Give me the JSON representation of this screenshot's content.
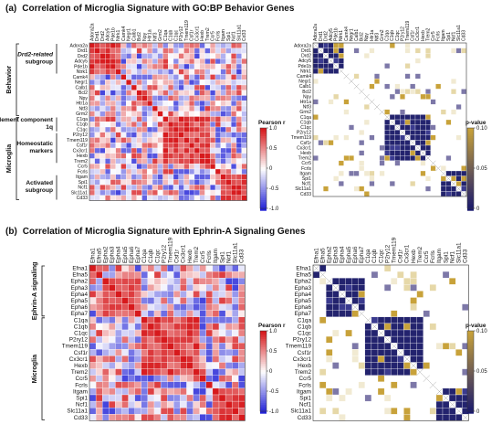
{
  "panels": [
    {
      "tag": "(a)",
      "title": "Correlation of Microglia Signature with GO:BP Behavior Genes",
      "genes": [
        "Adora2a",
        "Drd1",
        "Drd2",
        "Adcy5",
        "Pde1b",
        "Ntrk1",
        "Camk4",
        "Negr1",
        "Calb1",
        "Bcl2",
        "Npy",
        "Htr1a",
        "Ntf3",
        "Grm2",
        "C1qa",
        "C1qb",
        "C1qc",
        "P2ry12",
        "Tmem119",
        "Csf1r",
        "Cx3cr1",
        "Hexb",
        "Trem2",
        "Ccr5",
        "Fcrls",
        "Itgam",
        "Spi1",
        "Ncf1",
        "Slc11a1",
        "Cd33"
      ],
      "groups": [
        {
          "label": "Behavior",
          "italic": false,
          "start": 0,
          "end": 13,
          "subgroups": [
            {
              "label": "Drd2-related subgroup",
              "italic_prefix": "Drd2",
              "start": 0,
              "end": 5
            }
          ]
        },
        {
          "label": "Microglia",
          "italic": false,
          "start": 14,
          "end": 29,
          "subgroups": [
            {
              "label": "Complement component 1q",
              "start": 14,
              "end": 16
            },
            {
              "label": "Homeostatic markers",
              "start": 17,
              "end": 22
            },
            {
              "label": "Activated subgroup",
              "start": 25,
              "end": 29
            }
          ]
        }
      ],
      "blocks": [
        [
          0,
          5
        ],
        [
          14,
          22
        ],
        [
          25,
          29
        ]
      ],
      "colorbar": {
        "label": "Pearson r",
        "ticks": [
          "1.0",
          "0.5",
          "0",
          "-0.5",
          "-1.0"
        ]
      },
      "pvalue_bar": {
        "label": "p-value",
        "ticks": [
          "0.10",
          "0.05",
          "0"
        ]
      }
    },
    {
      "tag": "(b)",
      "title": "Correlation of Microglia Signature with Ephrin-A Signaling Genes",
      "genes": [
        "Efna1",
        "Efna5",
        "Epha2",
        "Epha3",
        "Epha4",
        "Epha5",
        "Epha6",
        "Epha7",
        "C1qa",
        "C1qb",
        "C1qc",
        "P2ry12",
        "Tmem119",
        "Csf1r",
        "Cx3cr1",
        "Hexb",
        "Trem2",
        "Ccr5",
        "Fcrls",
        "Itgam",
        "Spi1",
        "Ncf1",
        "Slc11a1",
        "Cd33"
      ],
      "groups": [
        {
          "label": "Ephrin-A signaling",
          "italic": false,
          "start": 0,
          "end": 7,
          "subgroups": []
        },
        {
          "label": "Microglia",
          "italic": false,
          "start": 8,
          "end": 23,
          "subgroups": []
        }
      ],
      "blocks": [
        [
          0,
          1
        ],
        [
          2,
          7
        ],
        [
          8,
          16
        ],
        [
          19,
          23
        ]
      ],
      "colorbar": {
        "label": "Pearson r",
        "ticks": [
          "1.0",
          "0.5",
          "0",
          "-0.5",
          "-1.0"
        ]
      },
      "pvalue_bar": {
        "label": "p-value",
        "ticks": [
          "0.10",
          "0.05",
          "0"
        ]
      }
    }
  ],
  "chart_data": [
    {
      "type": "heatmap",
      "title": "Correlation of Microglia Signature with GO:BP Behavior Genes",
      "value": "Pearson r",
      "range": [
        -1,
        1
      ],
      "pvalue_range": [
        0,
        0.1
      ]
    },
    {
      "type": "heatmap",
      "title": "Correlation of Microglia Signature with Ephrin-A Signaling Genes",
      "value": "Pearson r",
      "range": [
        -1,
        1
      ],
      "pvalue_range": [
        0,
        0.1
      ]
    }
  ],
  "colors": {
    "positive": "#d7191c",
    "negative": "#2b2bd9",
    "neutral": "#ffffff",
    "pvalue_low": "#1a1a6e",
    "pvalue_high": "#c8a23a"
  }
}
